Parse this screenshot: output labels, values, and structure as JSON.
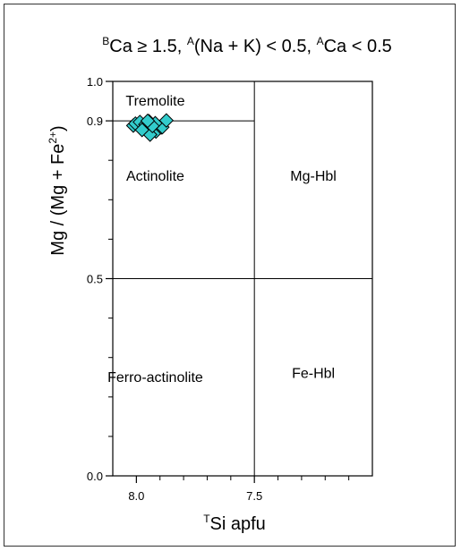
{
  "chart_data": {
    "type": "scatter",
    "title_parts": [
      {
        "sup": "B",
        "text": "Ca ≥ 1.5, "
      },
      {
        "sup": "A",
        "text": "(Na + K) < 0.5, "
      },
      {
        "sup": "A",
        "text": "Ca < 0.5"
      }
    ],
    "xlabel": {
      "sup": "T",
      "text": "Si apfu"
    },
    "ylabel": {
      "pre": "Mg / (Mg + Fe",
      "sup": "2+",
      "post": ")"
    },
    "xlim": [
      8.1,
      7.0
    ],
    "ylim": [
      0.0,
      1.0
    ],
    "x_ticks": [
      {
        "value": 8.0,
        "label": "8.0"
      },
      {
        "value": 7.5,
        "label": "7.5"
      }
    ],
    "x_minor_ticks": [
      7.9,
      7.8,
      7.7,
      7.6,
      7.4,
      7.3,
      7.2,
      7.1
    ],
    "y_ticks": [
      {
        "value": 0.0,
        "label": "0.0"
      },
      {
        "value": 0.5,
        "label": "0.5"
      },
      {
        "value": 0.9,
        "label": "0.9"
      },
      {
        "value": 1.0,
        "label": "1.0"
      }
    ],
    "y_minor_ticks": [
      0.1,
      0.2,
      0.3,
      0.4,
      0.6,
      0.7,
      0.8
    ],
    "boundaries": [
      {
        "orientation": "horizontal",
        "value": 0.9,
        "from": 8.1,
        "to": 7.5
      },
      {
        "orientation": "horizontal",
        "value": 0.5,
        "from": 8.1,
        "to": 7.0
      },
      {
        "orientation": "vertical",
        "value": 7.5,
        "from": 0.0,
        "to": 1.0
      }
    ],
    "fields": [
      {
        "label": "Tremolite",
        "x": 7.92,
        "y": 0.95
      },
      {
        "label": "Actinolite",
        "x": 7.92,
        "y": 0.76
      },
      {
        "label": "Mg-Hbl",
        "x": 7.25,
        "y": 0.76
      },
      {
        "label": "Ferro-actinolite",
        "x": 7.92,
        "y": 0.25
      },
      {
        "label": "Fe-Hbl",
        "x": 7.25,
        "y": 0.26
      }
    ],
    "marker": {
      "shape": "diamond",
      "fill": "#33cccc",
      "stroke": "#000000"
    },
    "series": [
      {
        "x": [
          8.013,
          8.004,
          7.985,
          7.962,
          7.947,
          7.931,
          7.917,
          7.895,
          7.89,
          7.873,
          7.942,
          7.92,
          7.932,
          7.976,
          7.952
        ],
        "y": [
          0.888,
          0.893,
          0.897,
          0.891,
          0.899,
          0.88,
          0.873,
          0.883,
          0.884,
          0.901,
          0.865,
          0.894,
          0.887,
          0.877,
          0.9
        ]
      }
    ]
  }
}
